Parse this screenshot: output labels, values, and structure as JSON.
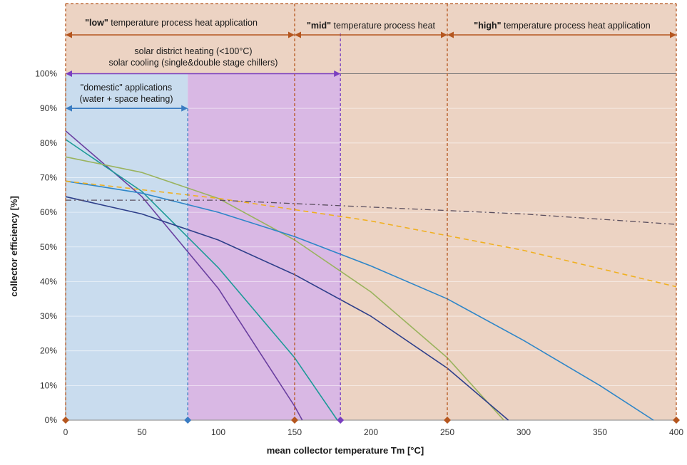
{
  "chart_data": {
    "type": "line",
    "xlabel": "mean collector temperature Tm  [°C]",
    "ylabel": "collector efficiency [%]",
    "xlim": [
      0,
      400
    ],
    "ylim": [
      0,
      100
    ],
    "x_ticks": [
      "0",
      "50",
      "100",
      "150",
      "200",
      "250",
      "300",
      "350",
      "400"
    ],
    "y_ticks": [
      "0%",
      "10%",
      "20%",
      "30%",
      "40%",
      "50%",
      "60%",
      "70%",
      "80%",
      "90%",
      "100%"
    ],
    "grid": "horizontal",
    "regions": [
      {
        "id": "domestic",
        "x_range": [
          0,
          80
        ],
        "y_range": [
          0,
          100
        ],
        "color": "#c9dcee",
        "line1": "\"domestic\" applications",
        "line2": "(water + space heating)"
      },
      {
        "id": "district",
        "x_range": [
          80,
          180
        ],
        "y_range": [
          0,
          100
        ],
        "color": "#d9b8e4",
        "line1": "solar district heating (<100°C)",
        "line2": "solar cooling (single&double stage chillers)"
      },
      {
        "id": "beige",
        "x_range": [
          180,
          400
        ],
        "y_range": [
          0,
          100
        ],
        "color": "#ecd3c3"
      }
    ],
    "process_ranges": [
      {
        "id": "low",
        "x_range": [
          0,
          150
        ],
        "bold": "\"low\"",
        "rest": " temperature process heat application"
      },
      {
        "id": "mid",
        "x_range": [
          150,
          250
        ],
        "bold": "\"mid\"",
        "rest": " temperature process heat"
      },
      {
        "id": "high",
        "x_range": [
          250,
          400
        ],
        "bold": "\"high\"",
        "rest": " temperature process heat application"
      }
    ],
    "series": [
      {
        "style": "solid",
        "color": "#6a3fa0",
        "x": [
          0,
          50,
          100,
          150,
          155
        ],
        "y": [
          83.5,
          64.5,
          38,
          4,
          0
        ]
      },
      {
        "style": "solid",
        "color": "#1e9a98",
        "x": [
          0,
          50,
          100,
          150,
          178
        ],
        "y": [
          81,
          66,
          44,
          18,
          0
        ]
      },
      {
        "style": "solid",
        "color": "#9ab35e",
        "x": [
          0,
          50,
          100,
          150,
          200,
          250,
          287
        ],
        "y": [
          76,
          71.5,
          64,
          52,
          37,
          18,
          0
        ]
      },
      {
        "style": "solid",
        "color": "#2e86c8",
        "x": [
          0,
          50,
          100,
          150,
          200,
          250,
          300,
          350,
          385
        ],
        "y": [
          69,
          65.5,
          60,
          53,
          44.5,
          35,
          23,
          10,
          0
        ]
      },
      {
        "style": "solid",
        "color": "#2e3f8a",
        "x": [
          0,
          50,
          100,
          150,
          200,
          250,
          290
        ],
        "y": [
          64.5,
          59.5,
          52,
          42,
          30,
          15,
          0
        ]
      },
      {
        "style": "dashed",
        "color": "#f0b020",
        "x": [
          0,
          100,
          200,
          300,
          400
        ],
        "y": [
          69,
          64,
          57.5,
          49,
          38.5
        ]
      },
      {
        "style": "dashdot",
        "color": "#5a4e5e",
        "x": [
          0,
          100,
          200,
          300,
          400
        ],
        "y": [
          63.5,
          63.5,
          61.5,
          59.5,
          56.5
        ]
      }
    ]
  }
}
